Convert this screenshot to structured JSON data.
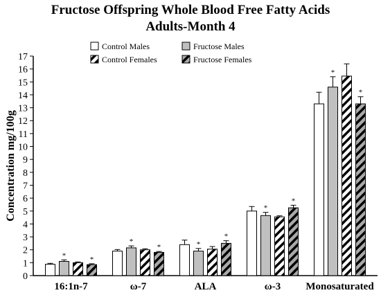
{
  "chart_data": {
    "type": "bar",
    "title": "Fructose Offspring Whole Blood Free Fatty Acids",
    "subtitle": "Adults-Month 4",
    "xlabel": "",
    "ylabel": "Concentration mg/100g",
    "ylim": [
      0,
      17
    ],
    "yticks": [
      0,
      1,
      2,
      3,
      4,
      5,
      6,
      7,
      8,
      9,
      10,
      11,
      12,
      13,
      14,
      15,
      16,
      17
    ],
    "grid": false,
    "legend_position": "top-center",
    "categories": [
      "16:1n-7",
      "ω-7",
      "ALA",
      "ω-3",
      "Monosaturated"
    ],
    "significance_marker": "*",
    "series": [
      {
        "name": "Control Males",
        "fill": "#ffffff",
        "pattern": "none",
        "values": [
          0.88,
          1.9,
          2.4,
          5.0,
          13.3
        ],
        "errors": [
          0.07,
          0.12,
          0.35,
          0.35,
          0.9
        ],
        "significant": [
          false,
          false,
          false,
          false,
          false
        ]
      },
      {
        "name": "Fructose Males",
        "fill": "#c0c0c0",
        "pattern": "none",
        "values": [
          1.1,
          2.15,
          1.9,
          4.65,
          14.6
        ],
        "errors": [
          0.12,
          0.15,
          0.2,
          0.25,
          0.8
        ],
        "significant": [
          true,
          true,
          true,
          true,
          true
        ]
      },
      {
        "name": "Control Females",
        "fill": "#ffffff",
        "pattern": "stripes",
        "values": [
          1.0,
          2.0,
          2.05,
          4.55,
          15.45
        ],
        "errors": [
          0.06,
          0.08,
          0.2,
          0.08,
          0.95
        ],
        "significant": [
          false,
          false,
          false,
          false,
          false
        ]
      },
      {
        "name": "Fructose Females",
        "fill": "#a9a9a9",
        "pattern": "stripes",
        "values": [
          0.85,
          1.8,
          2.5,
          5.25,
          13.3
        ],
        "errors": [
          0.07,
          0.07,
          0.2,
          0.2,
          0.55
        ],
        "significant": [
          true,
          true,
          true,
          true,
          true
        ]
      }
    ]
  }
}
